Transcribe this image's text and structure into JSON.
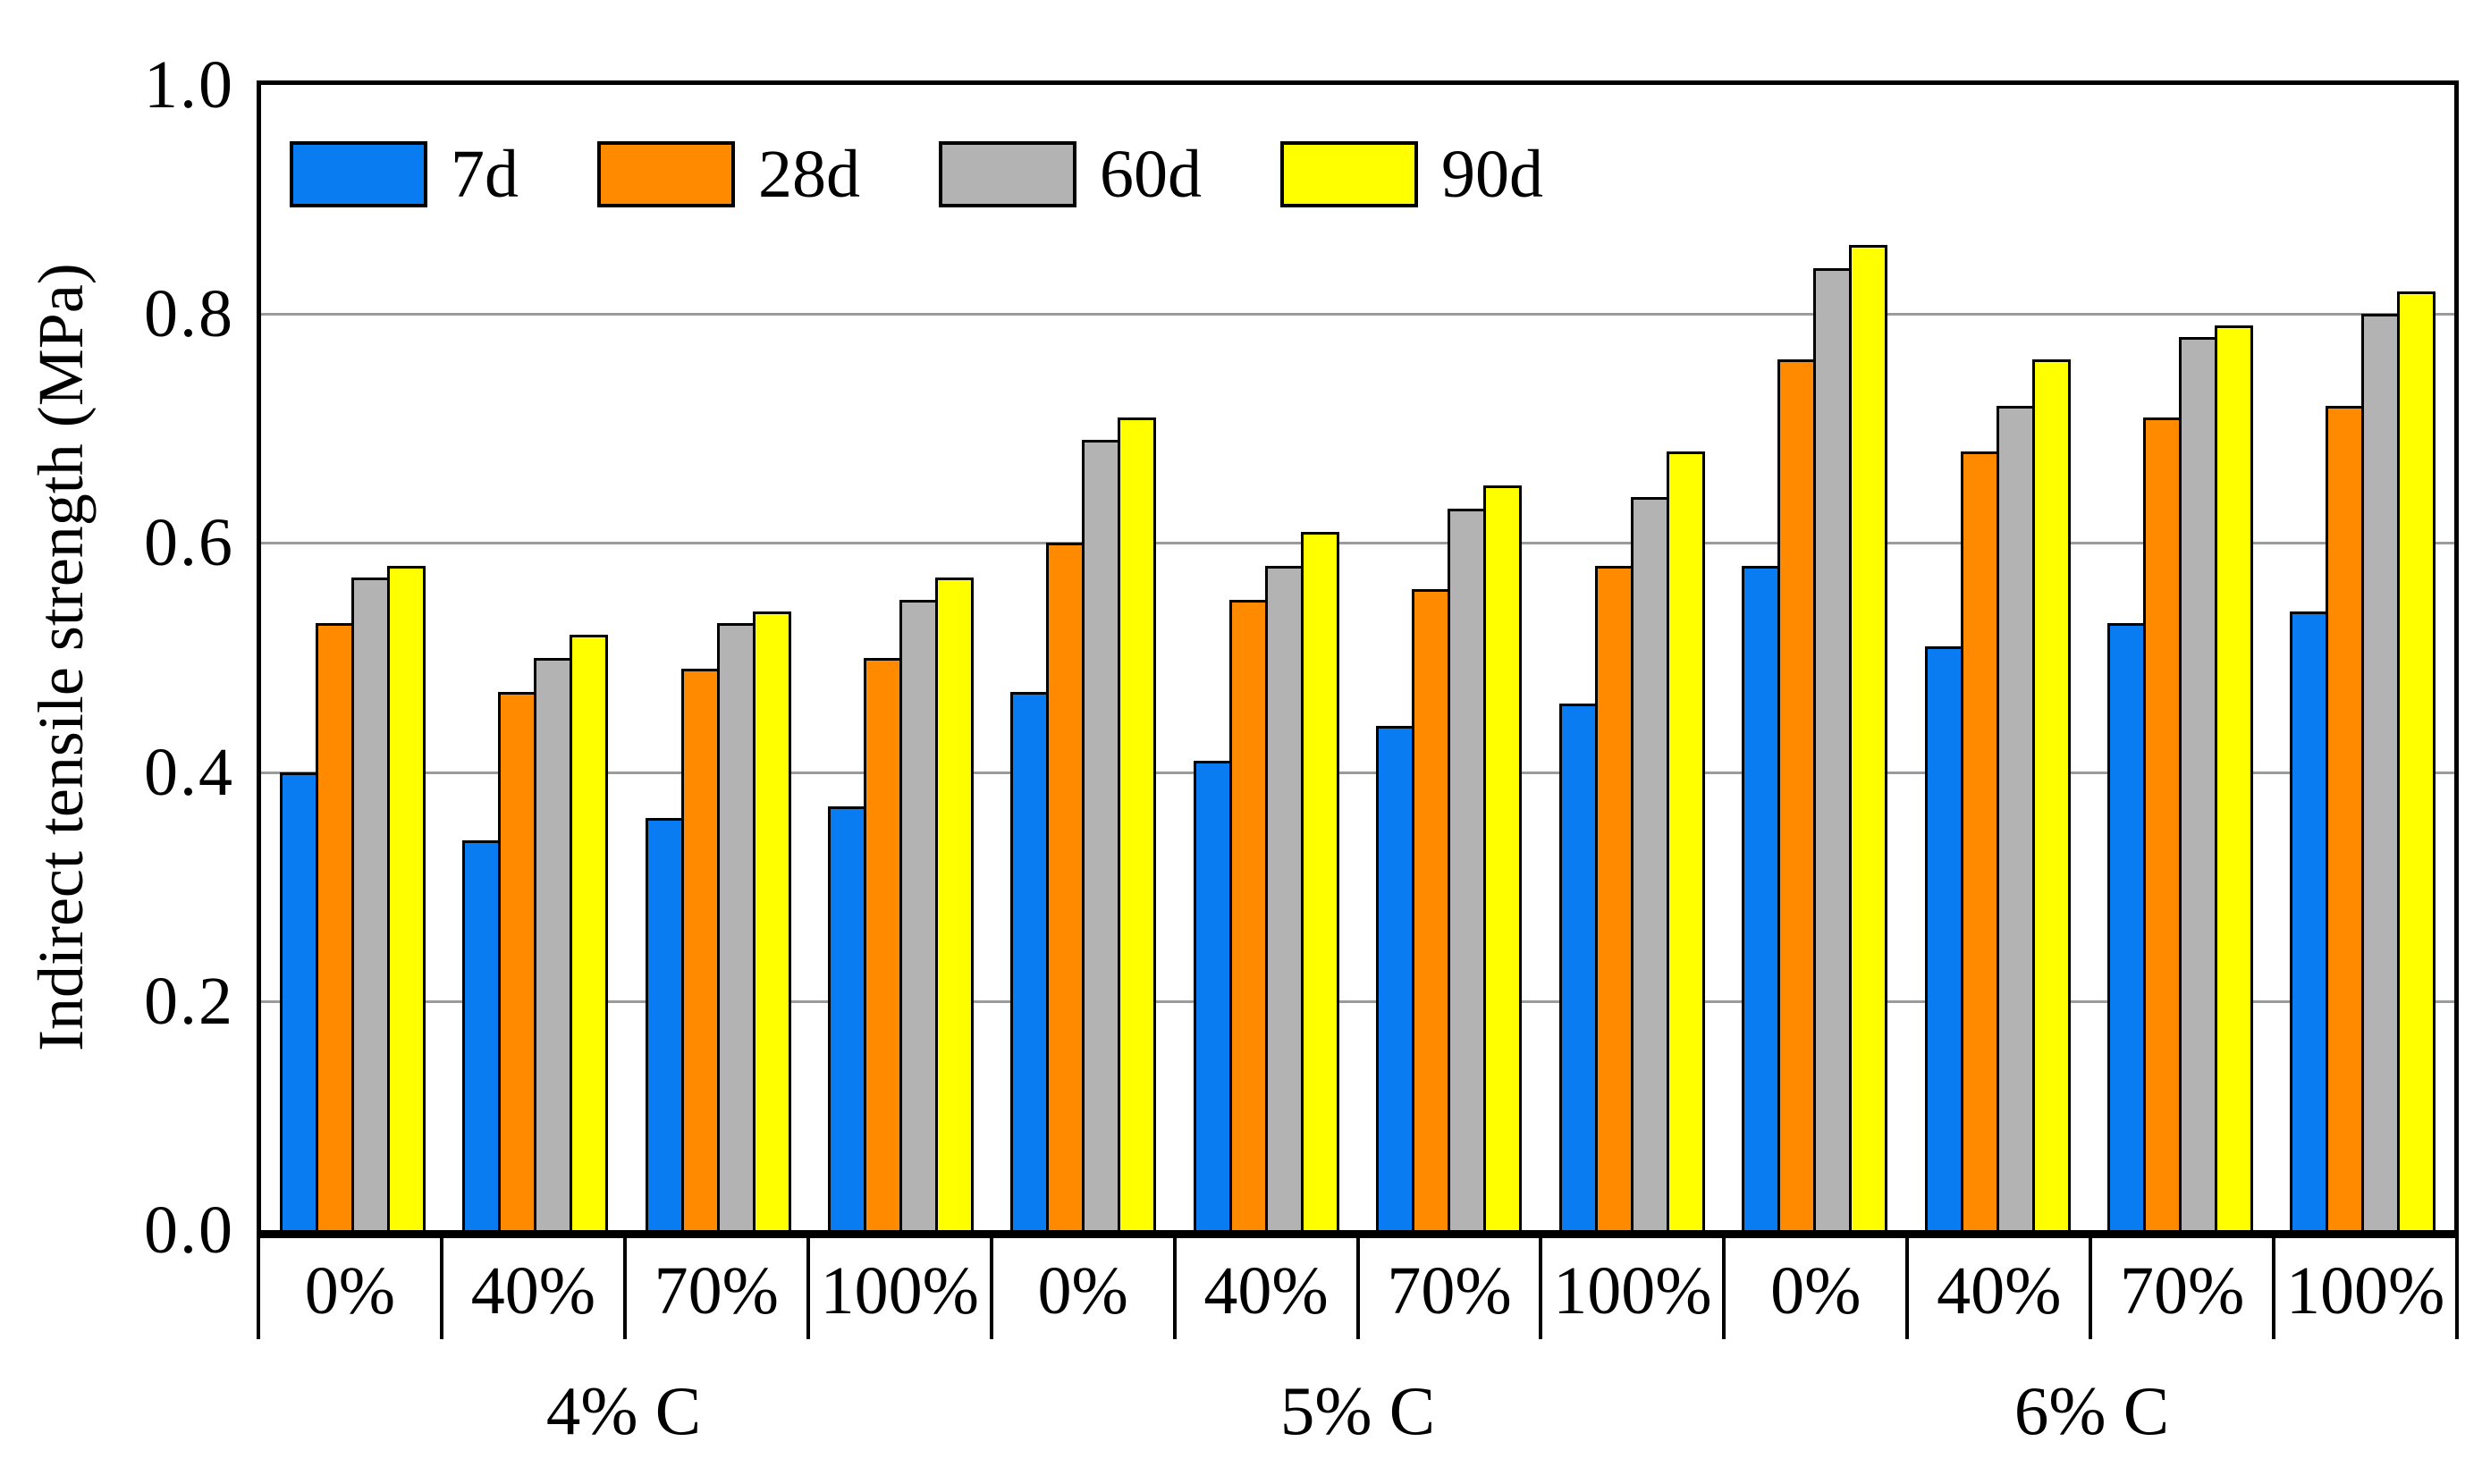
{
  "chart_data": {
    "type": "bar",
    "title": "",
    "xlabel": "",
    "ylabel": "Indirect tensile strength (MPa)",
    "ylim": [
      0.0,
      1.0
    ],
    "yticks": [
      {
        "value": 1.0,
        "label": "1.0"
      },
      {
        "value": 0.8,
        "label": "0.8"
      },
      {
        "value": 0.6,
        "label": "0.6"
      },
      {
        "value": 0.4,
        "label": "0.4"
      },
      {
        "value": 0.2,
        "label": "0.2"
      },
      {
        "value": 0.0,
        "label": "0.0"
      }
    ],
    "gridline_values": [
      0.8,
      0.6,
      0.4,
      0.2
    ],
    "grid": true,
    "legend_position": "top-left",
    "categories": [
      "0%",
      "40%",
      "70%",
      "100%",
      "0%",
      "40%",
      "70%",
      "100%",
      "0%",
      "40%",
      "70%",
      "100%"
    ],
    "group_labels": [
      "4% C",
      "5% C",
      "6% C"
    ],
    "series": [
      {
        "name": "7d",
        "color": "#0a7cf2",
        "values": [
          0.4,
          0.34,
          0.36,
          0.37,
          0.47,
          0.41,
          0.44,
          0.46,
          0.58,
          0.51,
          0.53,
          0.54
        ]
      },
      {
        "name": "28d",
        "color": "#ff8a00",
        "values": [
          0.53,
          0.47,
          0.49,
          0.5,
          0.6,
          0.55,
          0.56,
          0.58,
          0.76,
          0.68,
          0.71,
          0.72
        ]
      },
      {
        "name": "60d",
        "color": "#b3b3b3",
        "values": [
          0.57,
          0.5,
          0.53,
          0.55,
          0.69,
          0.58,
          0.63,
          0.64,
          0.84,
          0.72,
          0.78,
          0.8
        ]
      },
      {
        "name": "90d",
        "color": "#ffff00",
        "values": [
          0.58,
          0.52,
          0.54,
          0.57,
          0.71,
          0.61,
          0.65,
          0.68,
          0.86,
          0.76,
          0.79,
          0.82
        ]
      }
    ],
    "colors": {
      "bar_outline": "#000000",
      "gridline": "#9b9b9b",
      "frame": "#000000",
      "background": "#ffffff"
    }
  }
}
